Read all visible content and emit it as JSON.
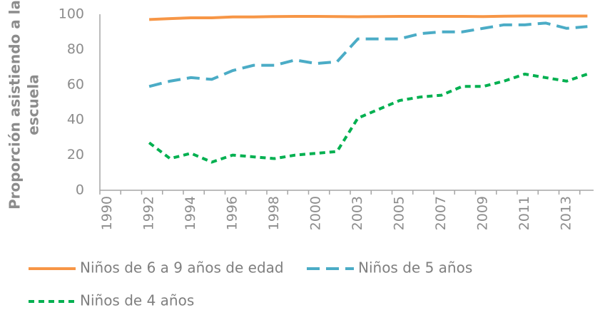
{
  "chart_data": {
    "type": "line",
    "y_label": [
      "Proporción asistiendo a la",
      "escuela"
    ],
    "categories": [
      "1990",
      null,
      "1992",
      null,
      "1994",
      null,
      "1996",
      null,
      "1998",
      null,
      "2000",
      null,
      "2003",
      null,
      "2005",
      null,
      "2007",
      null,
      "2009",
      null,
      "2011",
      null,
      "2013",
      null
    ],
    "series": [
      {
        "name": "Niños de 6 a 9 años de edad",
        "color": "#f79646",
        "dash": "solid",
        "values": [
          null,
          null,
          97,
          97.5,
          98,
          98,
          98.5,
          98.5,
          98.7,
          98.8,
          98.8,
          98.7,
          98.6,
          98.7,
          98.8,
          98.8,
          98.8,
          98.8,
          98.7,
          98.9,
          99,
          99,
          99,
          99
        ]
      },
      {
        "name": "Niños de 5 años",
        "color": "#4bacc6",
        "dash": "dash",
        "values": [
          null,
          null,
          59,
          62,
          64,
          63,
          68,
          71,
          71,
          74,
          72,
          73,
          86,
          86,
          86,
          89,
          90,
          90,
          92,
          94,
          94,
          95,
          92,
          93
        ]
      },
      {
        "name": "Niños de 4 años",
        "color": "#00b050",
        "dash": "dot",
        "values": [
          null,
          null,
          27,
          18,
          21,
          16,
          20,
          19,
          18,
          20,
          21,
          22,
          41,
          46,
          51,
          53,
          54,
          59,
          59,
          62,
          66,
          64,
          62,
          66
        ]
      }
    ],
    "ylim": [
      0,
      100
    ],
    "yticks": [
      0,
      20,
      40,
      60,
      80,
      100
    ],
    "grid": false
  }
}
